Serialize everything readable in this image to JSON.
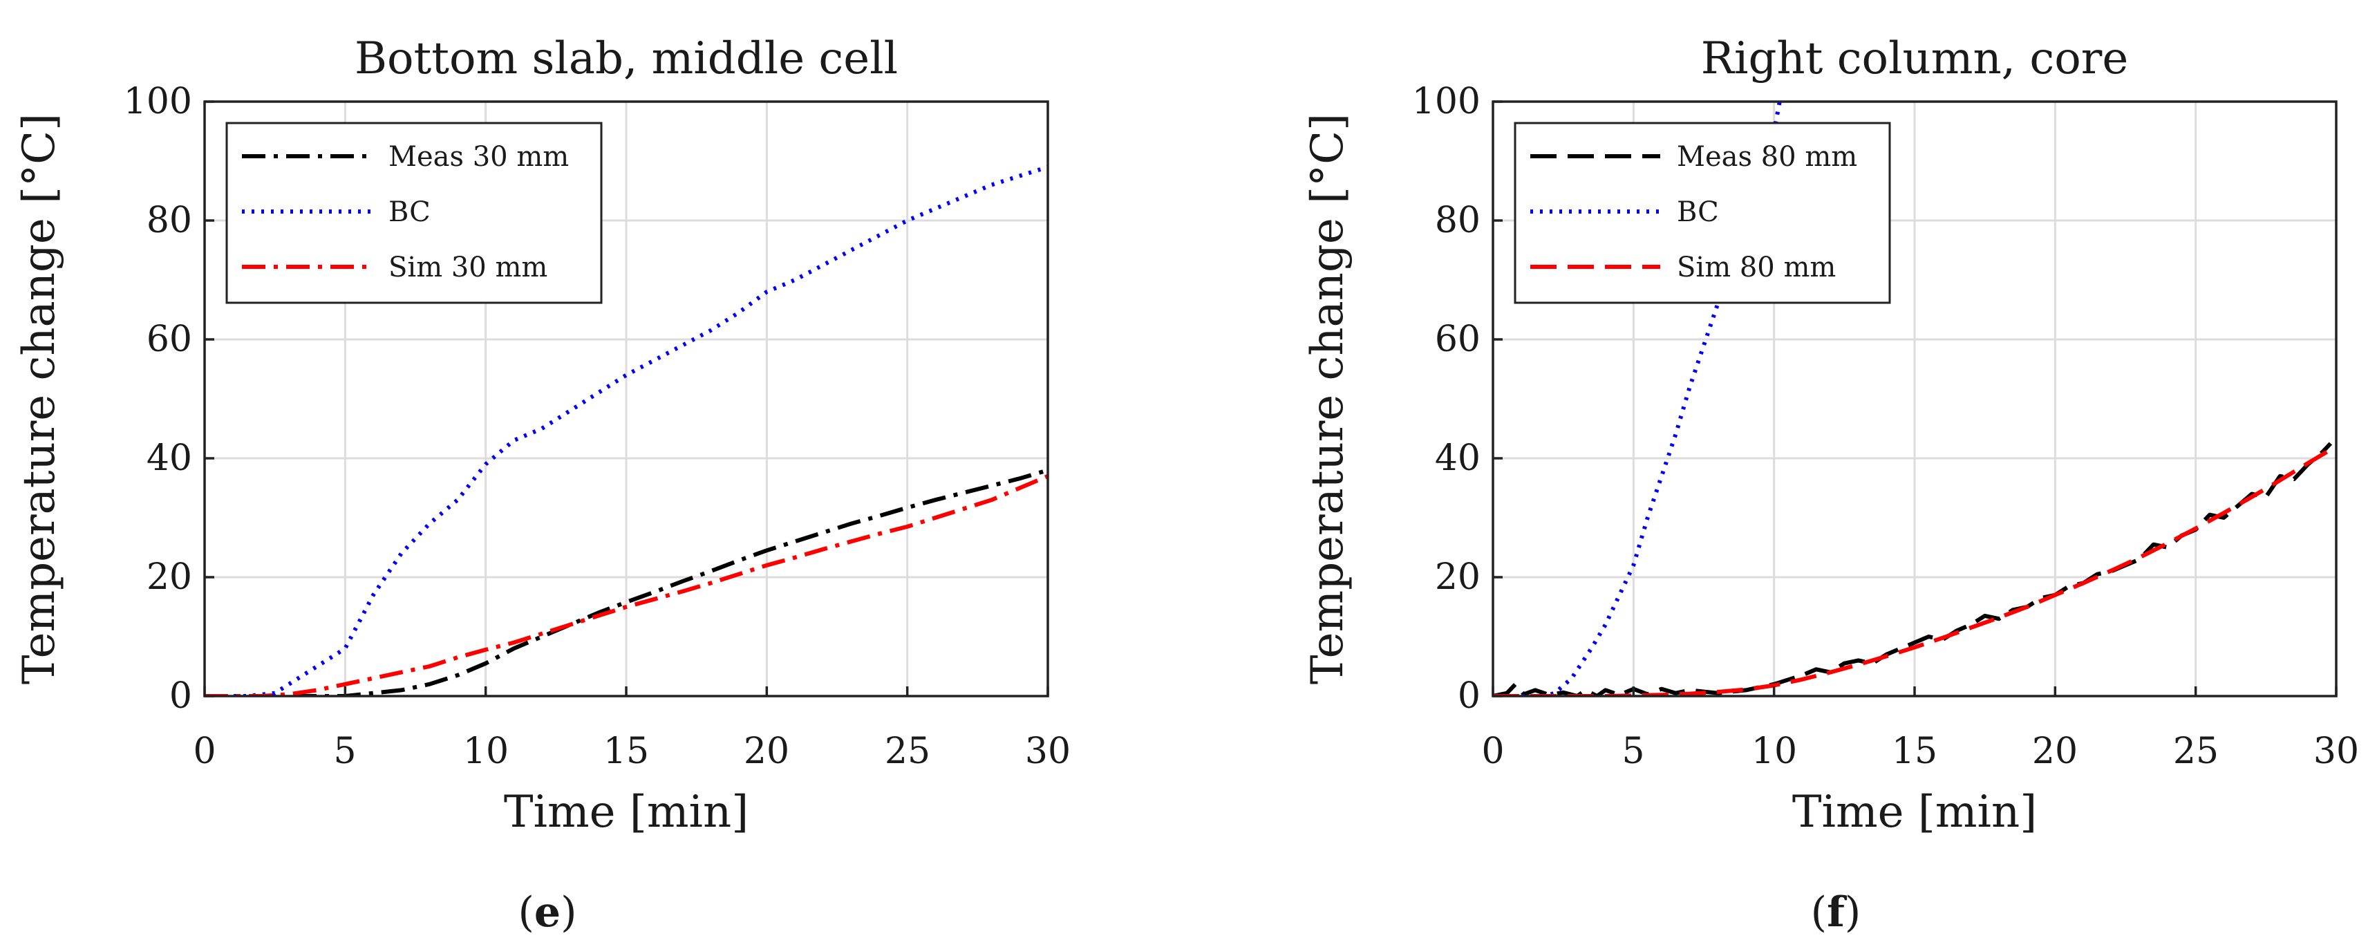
{
  "chart_data": [
    {
      "type": "line",
      "title": "Bottom slab, middle cell",
      "xlabel": "Time [min]",
      "ylabel": "Temperature change [°C]",
      "xlim": [
        0,
        30
      ],
      "ylim": [
        0,
        100
      ],
      "xticks": [
        "0",
        "5",
        "10",
        "15",
        "20",
        "25",
        "30"
      ],
      "yticks": [
        "0",
        "20",
        "40",
        "60",
        "80",
        "100"
      ],
      "grid": true,
      "legend_position": "top-left",
      "panel_label": "(e)",
      "panel_letter": "e",
      "series": [
        {
          "name": "Meas 30 mm",
          "style": "dashdot",
          "color": "#000000",
          "x": [
            0,
            2,
            4,
            5,
            6,
            7,
            8,
            9,
            10,
            11,
            12,
            13,
            14,
            15,
            16,
            17,
            18,
            19,
            20,
            21,
            22,
            23,
            24,
            25,
            26,
            27,
            28,
            29,
            30
          ],
          "y": [
            0,
            0,
            0,
            0,
            0.5,
            1,
            2,
            3.5,
            5.5,
            8,
            10,
            12,
            14,
            15.8,
            17.5,
            19.3,
            21,
            22.8,
            24.5,
            26,
            27.5,
            29,
            30.3,
            31.7,
            33,
            34.2,
            35.4,
            36.6,
            38
          ]
        },
        {
          "name": "BC",
          "style": "dotted",
          "color": "#0000ff",
          "x": [
            0,
            1.5,
            2.5,
            3,
            4,
            5,
            6,
            7,
            8,
            9,
            10,
            11,
            12,
            13,
            14,
            15,
            16,
            17,
            18,
            19,
            20,
            21,
            22,
            23,
            24,
            25,
            26,
            27,
            28,
            29,
            30
          ],
          "y": [
            0,
            0,
            0.5,
            2,
            5,
            8,
            17,
            24,
            29,
            33,
            39,
            43,
            45,
            48,
            51,
            54,
            56.5,
            59,
            61.5,
            64.5,
            68,
            70,
            72.5,
            75,
            77.5,
            80,
            82,
            84,
            86,
            87.5,
            89
          ]
        },
        {
          "name": "Sim 30 mm",
          "style": "dashdot",
          "color": "#ff0000",
          "x": [
            0,
            1,
            2,
            3,
            4,
            5,
            6,
            7,
            8,
            9,
            10,
            11,
            12,
            13,
            14,
            15,
            16,
            17,
            18,
            19,
            20,
            21,
            22,
            23,
            24,
            25,
            26,
            27,
            28,
            29,
            30
          ],
          "y": [
            0,
            0,
            0,
            0.3,
            1,
            2,
            3,
            4,
            5,
            6.5,
            7.8,
            9,
            10.5,
            12,
            13.5,
            15,
            16.3,
            17.6,
            19,
            20.5,
            22,
            23.3,
            24.7,
            26,
            27.3,
            28.5,
            30,
            31.5,
            33,
            35,
            37
          ]
        }
      ]
    },
    {
      "type": "line",
      "title": "Right column, core",
      "xlabel": "Time [min]",
      "ylabel": "Temperature change [°C]",
      "xlim": [
        0,
        30
      ],
      "ylim": [
        0,
        100
      ],
      "xticks": [
        "0",
        "5",
        "10",
        "15",
        "20",
        "25",
        "30"
      ],
      "yticks": [
        "0",
        "20",
        "40",
        "60",
        "80",
        "100"
      ],
      "grid": true,
      "legend_position": "top-left",
      "panel_label": "(f)",
      "panel_letter": "f",
      "series": [
        {
          "name": "Meas 80 mm",
          "style": "dashed",
          "color": "#000000",
          "x": [
            0,
            0.5,
            0.8,
            1.1,
            1.5,
            2,
            2.5,
            3,
            3.3,
            3.7,
            4,
            4.5,
            5,
            5.5,
            6,
            6.5,
            7,
            8,
            9,
            10,
            11,
            11.5,
            12,
            12.5,
            13,
            13.5,
            14,
            15,
            15.5,
            16,
            16.5,
            17,
            17.5,
            18,
            18.5,
            19,
            19.5,
            20,
            20.5,
            21,
            21.5,
            22,
            22.5,
            23,
            23.5,
            24,
            24.5,
            25,
            25.5,
            26,
            26.5,
            27,
            27.5,
            28,
            28.5,
            29,
            29.5,
            29.8
          ],
          "y": [
            0,
            0.5,
            2,
            0.3,
            1,
            0.2,
            0.6,
            0,
            1,
            0,
            1,
            0.2,
            1.2,
            0.3,
            1.2,
            0.5,
            1,
            0.5,
            1,
            2,
            3.5,
            4.5,
            4,
            5.5,
            6,
            5.5,
            7,
            9,
            10,
            9.5,
            11,
            12,
            13.5,
            13,
            14.5,
            15,
            16.5,
            17,
            18.5,
            19,
            20.5,
            21,
            22,
            23,
            25.5,
            25,
            27,
            28,
            30.5,
            30,
            32,
            34,
            33.5,
            37,
            36.5,
            39,
            41,
            42.5
          ]
        },
        {
          "name": "BC",
          "style": "dotted",
          "color": "#0000ff",
          "x": [
            0,
            1.8,
            2.2,
            2.8,
            3.5,
            4,
            4.5,
            5,
            5.5,
            6,
            6.5,
            7,
            7.5,
            8,
            8.5,
            9,
            9.5,
            10,
            10.2
          ],
          "y": [
            0,
            0,
            0.5,
            3,
            8,
            12,
            17,
            22,
            30,
            37,
            44,
            52,
            59,
            66,
            73,
            80,
            87,
            95,
            100
          ]
        },
        {
          "name": "Sim 80 mm",
          "style": "dashed",
          "color": "#ff0000",
          "x": [
            0,
            2,
            4,
            6,
            7,
            8,
            9,
            10,
            11,
            12,
            13,
            14,
            15,
            16,
            17,
            18,
            19,
            20,
            21,
            22,
            23,
            24,
            25,
            26,
            27,
            28,
            29,
            30
          ],
          "y": [
            0,
            0,
            0,
            0.2,
            0.4,
            0.7,
            1.1,
            1.8,
            2.8,
            4,
            5.3,
            6.7,
            8.2,
            9.8,
            11.5,
            13.2,
            15,
            17,
            19,
            21.1,
            23.3,
            25.7,
            28.2,
            30.8,
            33.5,
            36.3,
            39.2,
            42
          ]
        }
      ]
    }
  ]
}
